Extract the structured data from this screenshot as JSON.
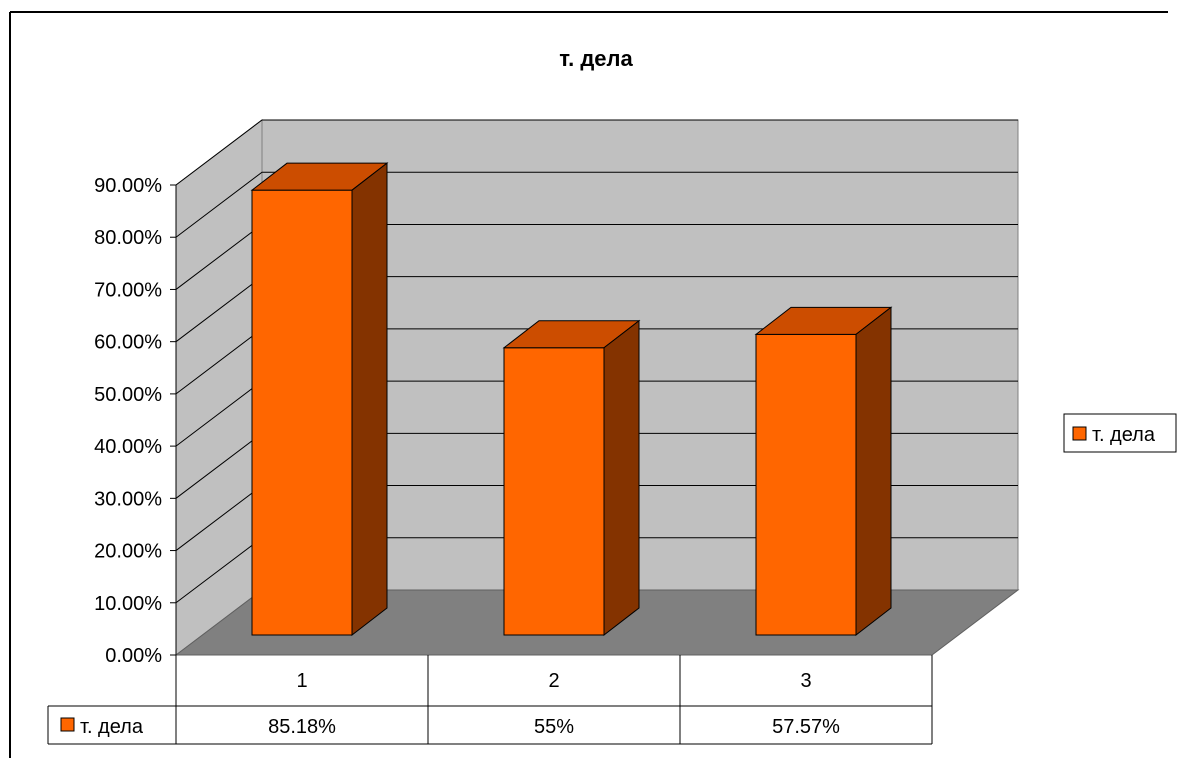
{
  "chart_data": {
    "type": "bar",
    "title": "т. дела",
    "categories": [
      "1",
      "2",
      "3"
    ],
    "series": [
      {
        "name": "т. дела",
        "values": [
          0.8518,
          0.55,
          0.5757
        ],
        "labels": [
          "85.18%",
          "55%",
          "57.57%"
        ]
      }
    ],
    "ylim": [
      0,
      0.9
    ],
    "yticks": [
      "0.00%",
      "10.00%",
      "20.00%",
      "30.00%",
      "40.00%",
      "50.00%",
      "60.00%",
      "70.00%",
      "80.00%",
      "90.00%"
    ],
    "grid": true,
    "legend": "right",
    "data_table": true,
    "colors": {
      "bar_front": "#ff6600",
      "bar_top": "#cc4d00",
      "bar_side": "#843300",
      "wall": "#c0c0c0",
      "floor": "#808080",
      "border": "#000000"
    }
  }
}
